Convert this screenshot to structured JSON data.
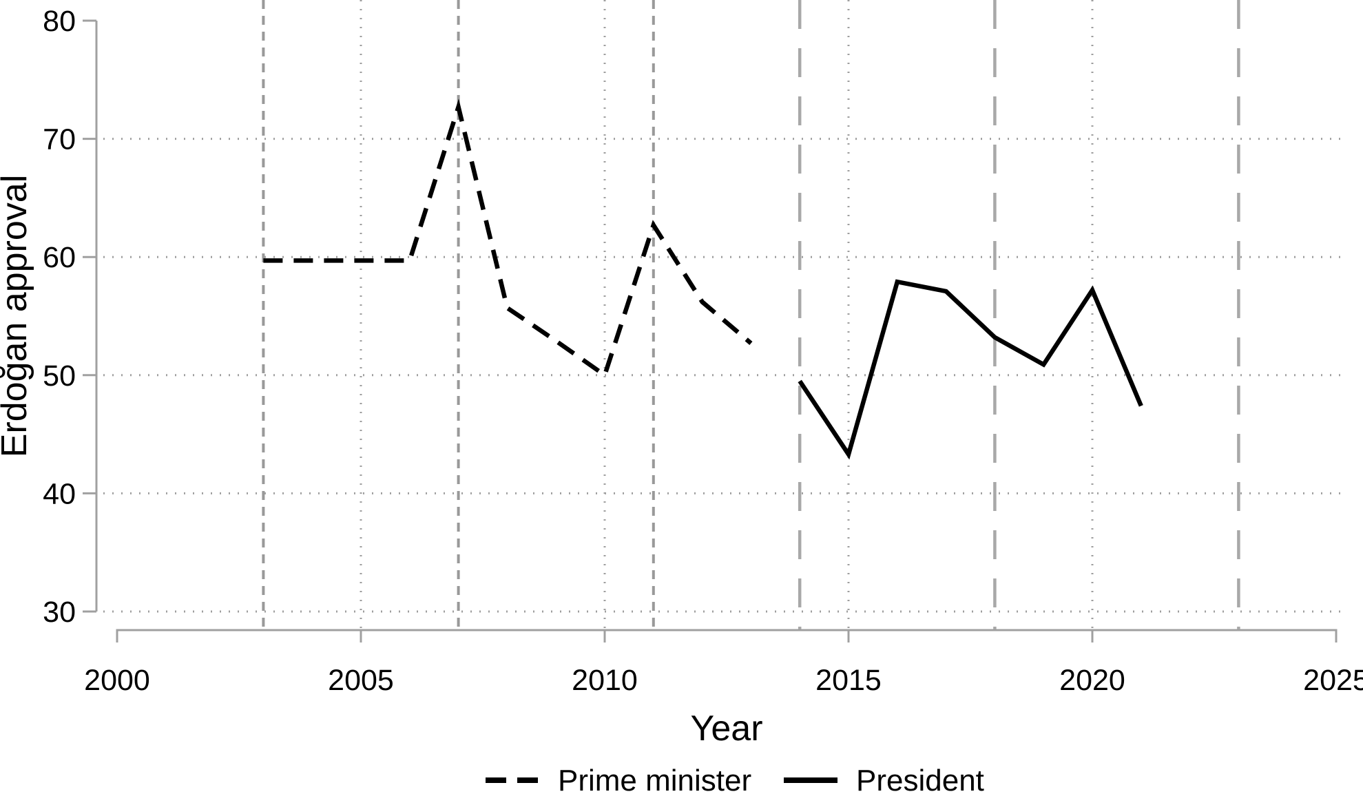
{
  "chart_data": {
    "type": "line",
    "title": "",
    "xlabel": "Year",
    "ylabel": "Erdoğan approval",
    "xlim": [
      2000,
      2025
    ],
    "ylim": [
      30,
      80
    ],
    "x_ticks": [
      2000,
      2005,
      2010,
      2015,
      2020,
      2025
    ],
    "y_ticks": [
      30,
      40,
      50,
      60,
      70,
      80
    ],
    "grid_y_dotted": [
      30,
      40,
      50,
      60,
      70
    ],
    "grid_x_dotted": [
      2005,
      2010,
      2015,
      2020
    ],
    "vlines": [
      {
        "x": 2003,
        "style": "shortdash"
      },
      {
        "x": 2007,
        "style": "shortdash"
      },
      {
        "x": 2011,
        "style": "shortdash"
      },
      {
        "x": 2014,
        "style": "longdash"
      },
      {
        "x": 2018,
        "style": "longdash"
      },
      {
        "x": 2023,
        "style": "longdash"
      }
    ],
    "series": [
      {
        "name": "Prime minister",
        "style": "dashed",
        "color": "#000000",
        "x": [
          2003,
          2004,
          2005,
          2006,
          2007,
          2008,
          2009,
          2010,
          2011,
          2012,
          2013
        ],
        "values": [
          59.7,
          59.7,
          59.7,
          59.7,
          72.7,
          55.7,
          52.9,
          50.0,
          62.7,
          56.2,
          52.7
        ]
      },
      {
        "name": "President",
        "style": "solid",
        "color": "#000000",
        "x": [
          2014,
          2015,
          2016,
          2017,
          2018,
          2019,
          2020,
          2021
        ],
        "values": [
          49.5,
          43.3,
          57.9,
          57.1,
          53.2,
          50.9,
          57.2,
          47.4
        ]
      }
    ],
    "legend": {
      "position": "bottom",
      "entries": [
        "Prime minister",
        "President"
      ]
    },
    "colors": {
      "series": "#000000",
      "axis": "#a0a0a0",
      "grid_dots": "#9e9e9e",
      "vline_shortdash": "#999999",
      "vline_longdash": "#a8a8a8",
      "background": "#ffffff"
    }
  }
}
